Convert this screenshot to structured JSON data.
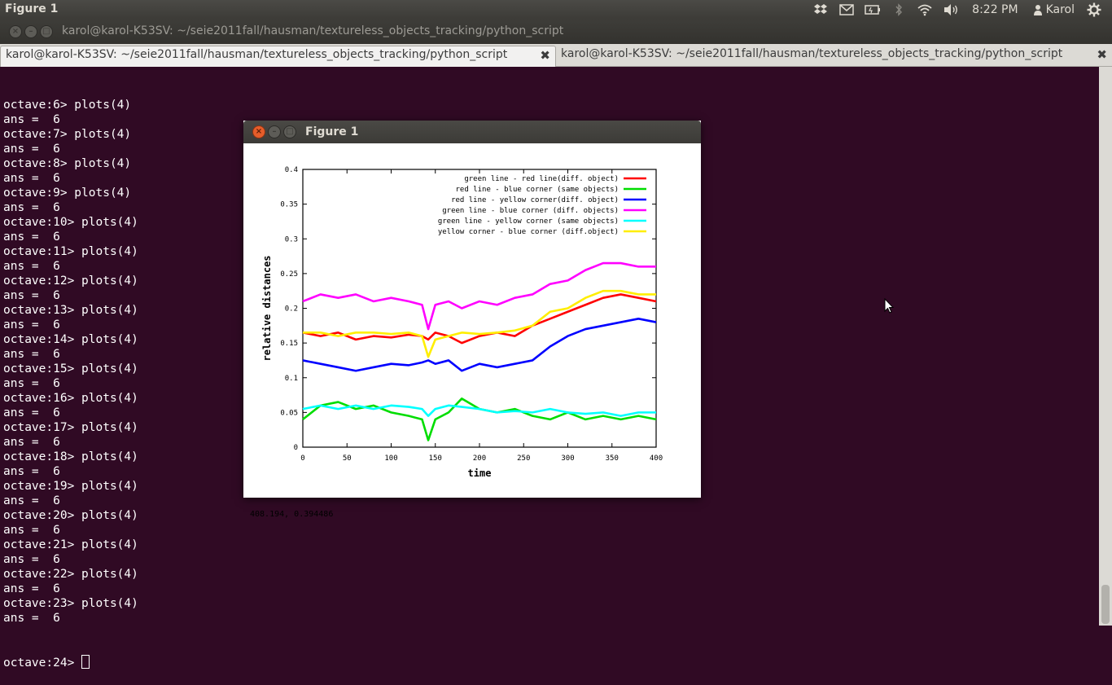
{
  "top_panel": {
    "app_title": "Figure 1",
    "clock": "8:22 PM",
    "user": "Karol",
    "tray_icons": [
      "dropbox-icon",
      "mail-icon",
      "battery-icon",
      "bluetooth-icon",
      "wifi-icon",
      "volume-icon"
    ]
  },
  "terminal_window": {
    "title": "karol@karol-K53SV: ~/seie2011fall/hausman/textureless_objects_tracking/python_script",
    "tabs": [
      {
        "label": "karol@karol-K53SV: ~/seie2011fall/hausman/textureless_objects_tracking/python_script",
        "active": true
      },
      {
        "label": "karol@karol-K53SV: ~/seie2011fall/hausman/textureless_objects_tracking/python_script",
        "active": false
      }
    ],
    "lines": [
      "octave:6> plots(4)",
      "ans =  6",
      "octave:7> plots(4)",
      "ans =  6",
      "octave:8> plots(4)",
      "ans =  6",
      "octave:9> plots(4)",
      "ans =  6",
      "octave:10> plots(4)",
      "ans =  6",
      "octave:11> plots(4)",
      "ans =  6",
      "octave:12> plots(4)",
      "ans =  6",
      "octave:13> plots(4)",
      "ans =  6",
      "octave:14> plots(4)",
      "ans =  6",
      "octave:15> plots(4)",
      "ans =  6",
      "octave:16> plots(4)",
      "ans =  6",
      "octave:17> plots(4)",
      "ans =  6",
      "octave:18> plots(4)",
      "ans =  6",
      "octave:19> plots(4)",
      "ans =  6",
      "octave:20> plots(4)",
      "ans =  6",
      "octave:21> plots(4)",
      "ans =  6",
      "octave:22> plots(4)",
      "ans =  6",
      "octave:23> plots(4)",
      "ans =  6"
    ],
    "prompt": "octave:24> "
  },
  "figure_window": {
    "title": "Figure 1",
    "coord_readout": "408.194,  0.394486"
  },
  "chart_data": {
    "type": "line",
    "title": "",
    "xlabel": "time",
    "ylabel": "relative distances",
    "xlim": [
      0,
      400
    ],
    "ylim": [
      0,
      0.4
    ],
    "x_ticks": [
      "0",
      "50",
      "100",
      "150",
      "200",
      "250",
      "300",
      "350",
      "400"
    ],
    "y_ticks": [
      "0",
      "0.05",
      "0.1",
      "0.15",
      "0.2",
      "0.25",
      "0.3",
      "0.35",
      "0.4"
    ],
    "legend_position": "top-right",
    "grid": false,
    "x": [
      0,
      20,
      40,
      60,
      80,
      100,
      120,
      135,
      142,
      150,
      165,
      180,
      200,
      220,
      240,
      260,
      280,
      300,
      320,
      340,
      360,
      380,
      400
    ],
    "series": [
      {
        "name": "green line - red line(diff. object)",
        "color": "#ff0000",
        "values": [
          0.165,
          0.16,
          0.165,
          0.155,
          0.16,
          0.158,
          0.162,
          0.16,
          0.155,
          0.165,
          0.16,
          0.15,
          0.16,
          0.165,
          0.16,
          0.175,
          0.185,
          0.195,
          0.205,
          0.215,
          0.22,
          0.215,
          0.21
        ]
      },
      {
        "name": "red line - blue corner (same objects)",
        "color": "#00dd00",
        "values": [
          0.04,
          0.06,
          0.065,
          0.055,
          0.06,
          0.05,
          0.045,
          0.04,
          0.01,
          0.04,
          0.05,
          0.07,
          0.055,
          0.05,
          0.055,
          0.045,
          0.04,
          0.05,
          0.04,
          0.045,
          0.04,
          0.045,
          0.04
        ]
      },
      {
        "name": "red line - yellow corner(diff. object)",
        "color": "#0000ff",
        "values": [
          0.125,
          0.12,
          0.115,
          0.11,
          0.115,
          0.12,
          0.118,
          0.122,
          0.125,
          0.12,
          0.125,
          0.11,
          0.12,
          0.115,
          0.12,
          0.125,
          0.145,
          0.16,
          0.17,
          0.175,
          0.18,
          0.185,
          0.18
        ]
      },
      {
        "name": "green line - blue corner (diff. objects)",
        "color": "#ff00ff",
        "values": [
          0.21,
          0.22,
          0.215,
          0.22,
          0.21,
          0.215,
          0.21,
          0.205,
          0.17,
          0.205,
          0.21,
          0.2,
          0.21,
          0.205,
          0.215,
          0.22,
          0.235,
          0.24,
          0.255,
          0.265,
          0.265,
          0.26,
          0.26
        ]
      },
      {
        "name": "green line - yellow corner (same objects)",
        "color": "#00ffff",
        "values": [
          0.055,
          0.06,
          0.055,
          0.06,
          0.055,
          0.06,
          0.058,
          0.055,
          0.045,
          0.055,
          0.06,
          0.058,
          0.055,
          0.05,
          0.052,
          0.05,
          0.055,
          0.05,
          0.048,
          0.05,
          0.045,
          0.05,
          0.05
        ]
      },
      {
        "name": "yellow corner - blue corner (diff.object)",
        "color": "#ffee00",
        "values": [
          0.165,
          0.165,
          0.16,
          0.165,
          0.165,
          0.163,
          0.165,
          0.16,
          0.13,
          0.155,
          0.16,
          0.165,
          0.163,
          0.165,
          0.168,
          0.175,
          0.195,
          0.2,
          0.215,
          0.225,
          0.225,
          0.22,
          0.22
        ]
      }
    ]
  }
}
